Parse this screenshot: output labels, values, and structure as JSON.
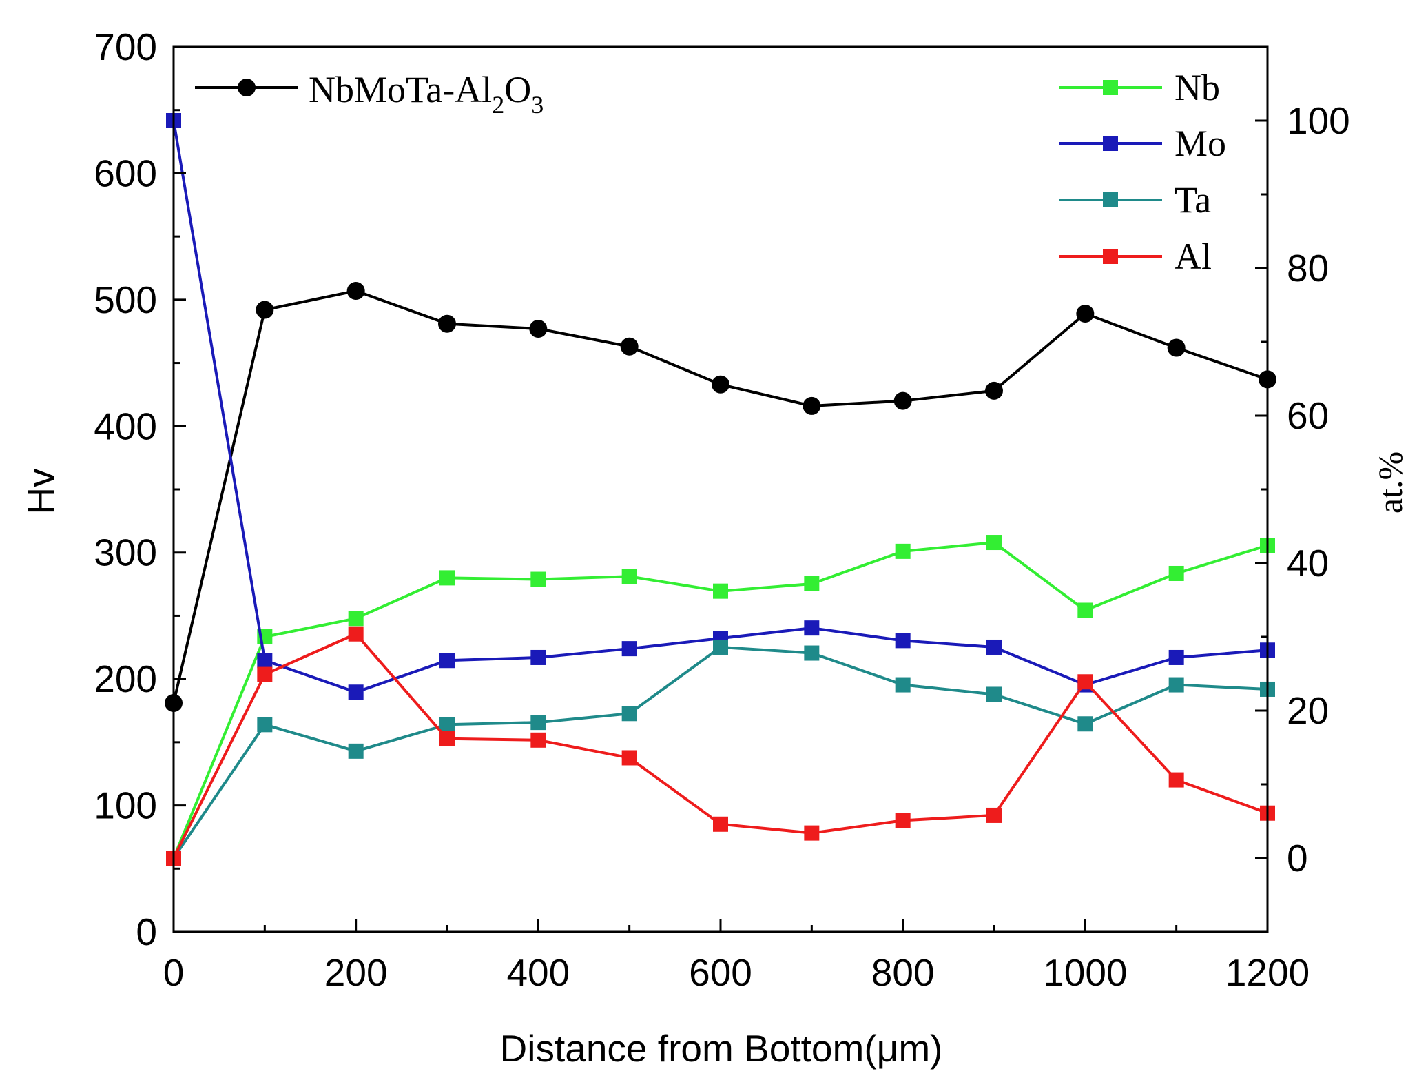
{
  "chart_data": {
    "type": "line",
    "title": "",
    "xlabel": "Distance from Bottom(μm)",
    "ylabel_left": "Hv",
    "ylabel_right": "at.%",
    "xlim": [
      0,
      1200
    ],
    "ylim_left": [
      0,
      700
    ],
    "ylim_right": [
      -10,
      110
    ],
    "x_ticks": [
      0,
      200,
      400,
      600,
      800,
      1000,
      1200
    ],
    "x_tick_labels": [
      "0",
      "200",
      "400",
      "600",
      "800",
      "1000",
      "1200"
    ],
    "y_left_ticks": [
      0,
      100,
      200,
      300,
      400,
      500,
      600,
      700
    ],
    "y_left_tick_labels": [
      "0",
      "100",
      "200",
      "300",
      "400",
      "500",
      "600",
      "700"
    ],
    "y_right_ticks": [
      0,
      20,
      40,
      60,
      80,
      100
    ],
    "y_right_tick_labels": [
      "0",
      "20",
      "40",
      "60",
      "80",
      "100"
    ],
    "x": [
      0,
      100,
      200,
      300,
      400,
      500,
      600,
      700,
      800,
      900,
      1000,
      1100,
      1200
    ],
    "series": [
      {
        "name": "NbMoTa-Al2O3",
        "legend_main": "NbMoTa-Al",
        "legend_sub1": "2",
        "legend_mid": "O",
        "legend_sub2": "3",
        "axis": "left",
        "marker": "circle",
        "color": "#000000",
        "values": [
          181,
          492,
          507,
          481,
          477,
          463,
          433,
          416,
          420,
          428,
          489,
          462,
          437
        ]
      },
      {
        "name": "Nb",
        "axis": "right",
        "marker": "square",
        "color": "#33ee33",
        "values": [
          0,
          30,
          32.5,
          38,
          37.8,
          38.2,
          36.2,
          37.2,
          41.6,
          42.8,
          33.6,
          38.6,
          42.4
        ]
      },
      {
        "name": "Mo",
        "axis": "right",
        "marker": "square",
        "color": "#1a1ab8",
        "values": [
          100,
          26.8,
          22.5,
          26.8,
          27.2,
          28.4,
          29.8,
          31.2,
          29.5,
          28.6,
          23.5,
          27.2,
          28.2
        ]
      },
      {
        "name": "Ta",
        "axis": "right",
        "marker": "square",
        "color": "#1f8a8a",
        "values": [
          0,
          18.1,
          14.5,
          18.1,
          18.4,
          19.6,
          28.6,
          27.8,
          23.5,
          22.2,
          18.2,
          23.5,
          22.9
        ]
      },
      {
        "name": "Al",
        "axis": "right",
        "marker": "square",
        "color": "#ee1c1c",
        "values": [
          0,
          24.9,
          30.4,
          16.2,
          16.0,
          13.6,
          4.6,
          3.4,
          5.1,
          5.8,
          23.9,
          10.6,
          6.1
        ]
      }
    ],
    "legend_left_position": "top-left",
    "legend_right_position": "top-right"
  }
}
